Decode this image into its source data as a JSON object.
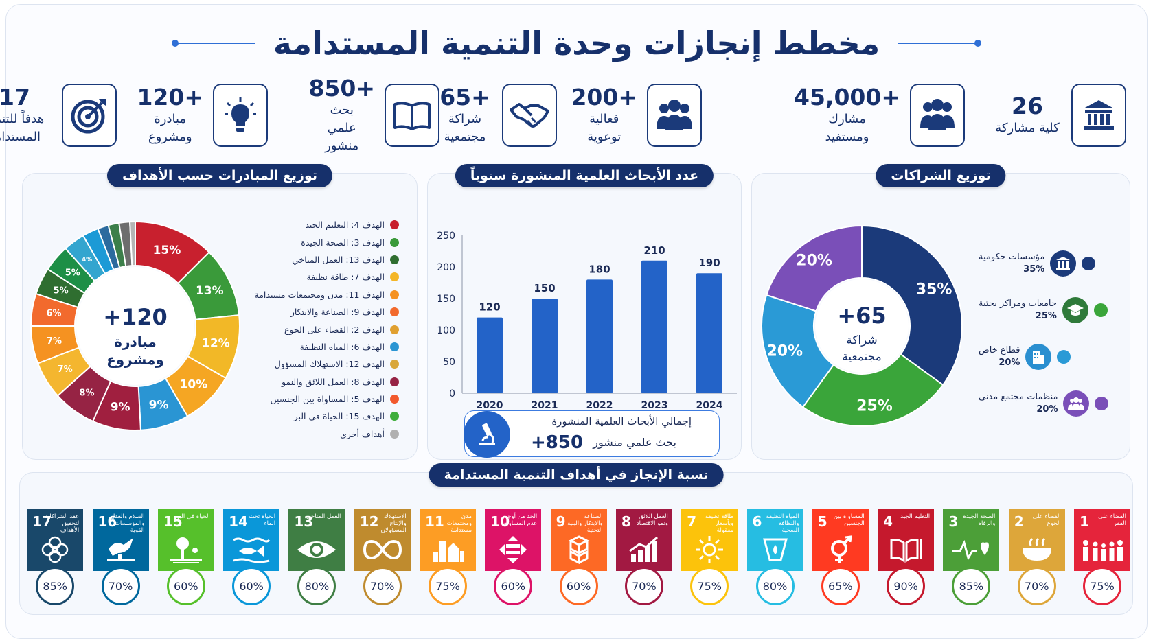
{
  "title": "مخطط إنجازات وحدة التنمية المستدامة",
  "stats": [
    {
      "value": "26",
      "label": "كلية مشاركة",
      "icon": "university-icon"
    },
    {
      "value": "+45,000",
      "label": "مشارك ومستفيد",
      "icon": "people-icon"
    },
    {
      "value": "+200",
      "label": "فعالية توعوية",
      "icon": "group-icon"
    },
    {
      "value": "+65",
      "label": "شراكة مجتمعية",
      "icon": "handshake-icon"
    },
    {
      "value": "+850",
      "label": "بحث علمي منشور",
      "icon": "book-icon"
    },
    {
      "value": "+120",
      "label": "مبادرة ومشروع",
      "icon": "lightbulb-icon"
    },
    {
      "value": "17",
      "label": "هدفاً للتنمية المستدامة",
      "icon": "target-icon"
    }
  ],
  "panels": {
    "initiatives_title": "توزيع المبادرات حسب الأهداف",
    "research_title": "عدد الأبحاث العلمية المنشورة سنوياً",
    "partners_title": "توزيع الشراكات",
    "sdg_title": "نسبة الإنجاز في أهداف التنمية المستدامة"
  },
  "donut_center": {
    "value": "+120",
    "label": "مبادرة ومشروع"
  },
  "partners_center": {
    "value": "+65",
    "label": "شراكة مجتمعية"
  },
  "research_total": {
    "title": "إجمالي الأبحاث العلمية المنشورة",
    "value": "+850",
    "label": "بحث علمي منشور"
  },
  "chart_data": [
    {
      "type": "pie",
      "title": "توزيع المبادرات حسب الأهداف",
      "categories": [
        "الهدف 4: التعليم الجيد",
        "الهدف 3: الصحة الجيدة",
        "الهدف 13: العمل المناخي",
        "الهدف 7: طاقة نظيفة",
        "الهدف 11: مدن ومجتمعات مستدامة",
        "الهدف 9: الصناعة والابتكار",
        "الهدف 2: القضاء على الجوع",
        "الهدف 6: المياه النظيفة",
        "الهدف 12: الاستهلاك المسؤول",
        "الهدف 8: العمل اللائق والنمو",
        "الهدف 5: المساواة بين الجنسين",
        "الهدف 15: الحياة في البر",
        "أهداف أخرى"
      ],
      "values": [
        15,
        13,
        12,
        10,
        9,
        9,
        8,
        7,
        7,
        6,
        5,
        5,
        4
      ],
      "slice_labels": [
        "15%",
        "13%",
        "12%",
        "10%",
        "9%",
        "9%",
        "8%",
        "7%",
        "7%",
        "6%",
        "5%",
        "5%",
        "4%"
      ],
      "slice_chart": [
        15,
        13,
        12,
        10,
        9,
        9,
        8,
        7,
        7,
        6,
        5,
        5,
        4,
        3,
        2,
        2,
        2,
        1
      ],
      "slice_colors": [
        "#c8202e",
        "#3a9a3a",
        "#f2b827",
        "#f5a623",
        "#2a95d3",
        "#a01f3f",
        "#962344",
        "#f4b62f",
        "#f59221",
        "#f26a2d",
        "#2f6e30",
        "#1d8f46",
        "#33a5cf",
        "#1c9ad6",
        "#2c6b9e",
        "#3c7f4a",
        "#6d6d6d",
        "#b5b5b5"
      ],
      "legend_colors": [
        "#c8202e",
        "#3a9a3a",
        "#2f6e30",
        "#f4b627",
        "#f59221",
        "#f26a2d",
        "#e0a030",
        "#2a95d3",
        "#d9a73a",
        "#962344",
        "#f2592d",
        "#3fae3c",
        "#b0b0b0"
      ]
    },
    {
      "type": "bar",
      "title": "عدد الأبحاث العلمية المنشورة سنوياً",
      "categories": [
        "2020",
        "2021",
        "2022",
        "2023",
        "2024"
      ],
      "values": [
        120,
        150,
        180,
        210,
        190
      ],
      "ylim": [
        0,
        250
      ],
      "yticks": [
        0,
        50,
        100,
        150,
        200,
        250
      ]
    },
    {
      "type": "pie",
      "title": "توزيع الشراكات",
      "categories": [
        "مؤسسات حكومية",
        "جامعات ومراكز بحثية",
        "قطاع خاص",
        "منظمات مجتمع مدني"
      ],
      "values": [
        35,
        25,
        20,
        20
      ],
      "labels": [
        "35%",
        "25%",
        "20%",
        "20%"
      ],
      "colors": [
        "#1b3a7a",
        "#3aa53a",
        "#2a9ad6",
        "#7a4fb8"
      ],
      "icons": [
        "university-icon",
        "graduation-cap-icon",
        "building-icon",
        "people-icon"
      ]
    },
    {
      "type": "table",
      "title": "نسبة الإنجاز في أهداف التنمية المستدامة",
      "goals": [
        {
          "num": "1",
          "name": "القضاء على الفقر",
          "pct": "75%",
          "color": "#e5243b"
        },
        {
          "num": "2",
          "name": "القضاء على الجوع",
          "pct": "70%",
          "color": "#dda63a"
        },
        {
          "num": "3",
          "name": "الصحة الجيدة والرفاه",
          "pct": "85%",
          "color": "#4c9f38"
        },
        {
          "num": "4",
          "name": "التعليم الجيد",
          "pct": "90%",
          "color": "#c5192d"
        },
        {
          "num": "5",
          "name": "المساواة بين الجنسين",
          "pct": "65%",
          "color": "#ff3a21"
        },
        {
          "num": "6",
          "name": "المياه النظيفة والنظافة الصحية",
          "pct": "80%",
          "color": "#26bde2"
        },
        {
          "num": "7",
          "name": "طاقة نظيفة وبأسعار معقولة",
          "pct": "75%",
          "color": "#fcc30b"
        },
        {
          "num": "8",
          "name": "العمل اللائق ونمو الاقتصاد",
          "pct": "70%",
          "color": "#a21942"
        },
        {
          "num": "9",
          "name": "الصناعة والابتكار والبنية التحتية",
          "pct": "60%",
          "color": "#fd6925"
        },
        {
          "num": "10",
          "name": "الحد من أوجه عدم المساواة",
          "pct": "60%",
          "color": "#dd1367"
        },
        {
          "num": "11",
          "name": "مدن ومجتمعات مستدامة",
          "pct": "75%",
          "color": "#fd9d24"
        },
        {
          "num": "12",
          "name": "الاستهلاك والإنتاج المسؤولان",
          "pct": "70%",
          "color": "#bf8b2e"
        },
        {
          "num": "13",
          "name": "العمل المناخي",
          "pct": "80%",
          "color": "#3f7e44"
        },
        {
          "num": "14",
          "name": "الحياة تحت الماء",
          "pct": "60%",
          "color": "#0a97d9"
        },
        {
          "num": "15",
          "name": "الحياة في البر",
          "pct": "60%",
          "color": "#56c02b"
        },
        {
          "num": "16",
          "name": "السلام والعدل والمؤسسات القوية",
          "pct": "70%",
          "color": "#00689d"
        },
        {
          "num": "17",
          "name": "عقد الشراكات لتحقيق الأهداف",
          "pct": "85%",
          "color": "#19486a"
        }
      ]
    }
  ]
}
